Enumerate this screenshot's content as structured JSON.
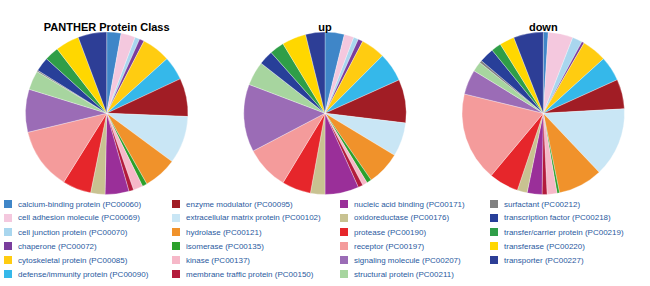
{
  "chart_data": [
    {
      "type": "pie",
      "title": "PANTHER Protein Class",
      "legend": "bottom",
      "categories": [
        "calcium-binding protein (PC00060)",
        "cell adhesion molecule (PC00069)",
        "cell junction protein (PC00070)",
        "chaperone (PC00072)",
        "cytoskeletal protein (PC00085)",
        "defense/immunity protein (PC00090)",
        "enzyme modulator (PC00095)",
        "extracellular matrix protein (PC00102)",
        "hydrolase (PC00121)",
        "isomerase (PC00135)",
        "kinase (PC00137)",
        "membrane traffic protein (PC00150)",
        "nucleic acid binding (PC00171)",
        "oxidoreductase (PC00176)",
        "protease (PC00190)",
        "receptor (PC00197)",
        "signaling molecule (PC00207)",
        "structural protein (PC00211)",
        "surfactant (PC00212)",
        "transcription factor (PC00218)",
        "transfer/carrier protein (PC00219)",
        "transferase (PC00220)",
        "transporter (PC00227)"
      ],
      "values": [
        3,
        3,
        1,
        1,
        6,
        5,
        8,
        10,
        7,
        1,
        2,
        1,
        5,
        3,
        6,
        13,
        9,
        4,
        0.3,
        3,
        3,
        5,
        6
      ],
      "colors": [
        "#3f86c8",
        "#f4c8de",
        "#a9d6ee",
        "#7a3e9d",
        "#ffcc11",
        "#35b8ea",
        "#a11d25",
        "#c9e6f5",
        "#f0922b",
        "#2ca02c",
        "#f6b8c8",
        "#b31b3c",
        "#9a2f99",
        "#c8c291",
        "#e6262b",
        "#f49b9b",
        "#9b6cb6",
        "#a7d59f",
        "#808080",
        "#283f99",
        "#2f9e48",
        "#ffd700",
        "#2d3e96"
      ]
    },
    {
      "type": "pie",
      "title": "up",
      "categories": [
        "calcium-binding protein (PC00060)",
        "cell adhesion molecule (PC00069)",
        "cell junction protein (PC00070)",
        "chaperone (PC00072)",
        "cytoskeletal protein (PC00085)",
        "defense/immunity protein (PC00090)",
        "enzyme modulator (PC00095)",
        "extracellular matrix protein (PC00102)",
        "hydrolase (PC00121)",
        "isomerase (PC00135)",
        "kinase (PC00137)",
        "membrane traffic protein (PC00150)",
        "nucleic acid binding (PC00171)",
        "oxidoreductase (PC00176)",
        "protease (PC00190)",
        "receptor (PC00197)",
        "signaling molecule (PC00207)",
        "structural protein (PC00211)",
        "surfactant (PC00212)",
        "transcription factor (PC00218)",
        "transfer/carrier protein (PC00219)",
        "transferase (PC00220)",
        "transporter (PC00227)"
      ],
      "values": [
        4,
        2,
        1,
        1,
        5,
        6,
        9,
        7,
        7,
        1,
        1,
        1,
        7,
        3,
        6,
        9,
        14,
        5,
        0,
        3,
        3,
        5,
        4
      ],
      "colors": [
        "#3f86c8",
        "#f4c8de",
        "#a9d6ee",
        "#7a3e9d",
        "#ffcc11",
        "#35b8ea",
        "#a11d25",
        "#c9e6f5",
        "#f0922b",
        "#2ca02c",
        "#f6b8c8",
        "#b31b3c",
        "#9a2f99",
        "#c8c291",
        "#e6262b",
        "#f49b9b",
        "#9b6cb6",
        "#a7d59f",
        "#808080",
        "#283f99",
        "#2f9e48",
        "#ffd700",
        "#2d3e96"
      ]
    },
    {
      "type": "pie",
      "title": "down",
      "categories": [
        "calcium-binding protein (PC00060)",
        "cell adhesion molecule (PC00069)",
        "cell junction protein (PC00070)",
        "chaperone (PC00072)",
        "cytoskeletal protein (PC00085)",
        "defense/immunity protein (PC00090)",
        "enzyme modulator (PC00095)",
        "extracellular matrix protein (PC00102)",
        "hydrolase (PC00121)",
        "isomerase (PC00135)",
        "kinase (PC00137)",
        "membrane traffic protein (PC00150)",
        "nucleic acid binding (PC00171)",
        "oxidoreductase (PC00176)",
        "protease (PC00190)",
        "receptor (PC00197)",
        "signaling molecule (PC00207)",
        "structural protein (PC00211)",
        "surfactant (PC00212)",
        "transcription factor (PC00218)",
        "transfer/carrier protein (PC00219)",
        "transferase (PC00220)",
        "transporter (PC00227)"
      ],
      "values": [
        1,
        5,
        2,
        0.5,
        5,
        5,
        6,
        14,
        9,
        0.5,
        2,
        1,
        3,
        2,
        6,
        18,
        5,
        2,
        0.5,
        3,
        2,
        3,
        6
      ],
      "colors": [
        "#3f86c8",
        "#f4c8de",
        "#a9d6ee",
        "#7a3e9d",
        "#ffcc11",
        "#35b8ea",
        "#a11d25",
        "#c9e6f5",
        "#f0922b",
        "#2ca02c",
        "#f6b8c8",
        "#b31b3c",
        "#9a2f99",
        "#c8c291",
        "#e6262b",
        "#f49b9b",
        "#9b6cb6",
        "#a7d59f",
        "#808080",
        "#283f99",
        "#2f9e48",
        "#ffd700",
        "#2d3e96"
      ]
    }
  ]
}
